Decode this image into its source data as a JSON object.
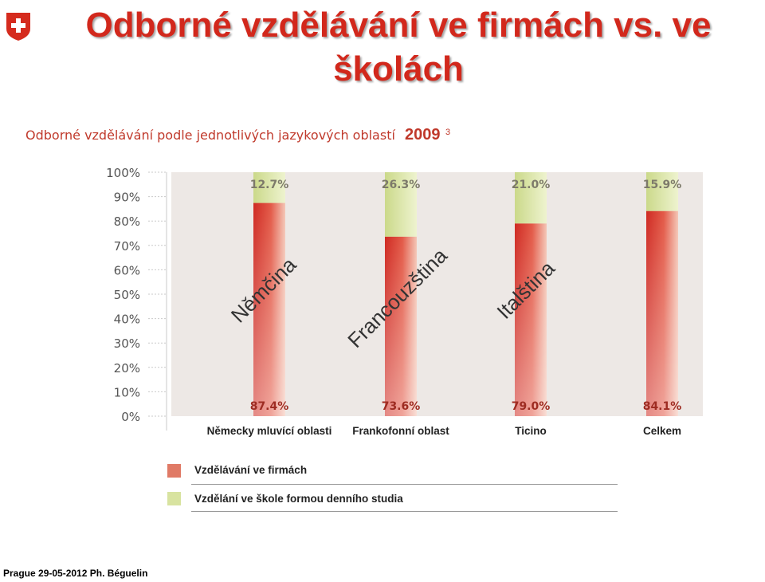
{
  "header": {
    "title": "Odborné vzdělávání ve firmách vs. ve školách"
  },
  "subtitle": {
    "text": "Odborné vzdělávání podle jednotlivých jazykových oblastí",
    "year": "2009",
    "footnote_mark": "3"
  },
  "chart_data": {
    "type": "bar",
    "stacked": true,
    "categories": [
      "Německy mluvící oblasti",
      "Frankofonní oblast",
      "Ticino",
      "Celkem"
    ],
    "series": [
      {
        "name": "Vzdělávání ve firmách",
        "values": [
          87.4,
          73.6,
          79.0,
          84.1
        ],
        "labels": [
          "87.4%",
          "73.6%",
          "79.0%",
          "84.1%"
        ],
        "color": "#d9342b"
      },
      {
        "name": "Vzdělání ve škole formou denního studia",
        "values": [
          12.7,
          26.3,
          21.0,
          15.9
        ],
        "labels": [
          "12.7%",
          "26.3%",
          "21.0%",
          "15.9%"
        ],
        "color": "#d8e3a0"
      }
    ],
    "yticks": [
      "100%",
      "90%",
      "80%",
      "70%",
      "60%",
      "50%",
      "40%",
      "30%",
      "20%",
      "10%",
      "0%"
    ],
    "ylim": [
      0,
      100
    ],
    "background": "#ede8e5",
    "annotations": [
      "Němčina",
      "Francouzština",
      "Italština"
    ]
  },
  "footer": {
    "text": "Prague 29-05-2012  Ph. Béguelin"
  },
  "colors": {
    "accent": "#d2281c",
    "company": "#d9342b",
    "school": "#d8e3a0"
  }
}
